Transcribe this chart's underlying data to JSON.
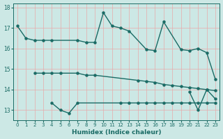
{
  "xlabel": "Humidex (Indice chaleur)",
  "xlim": [
    -0.5,
    23.5
  ],
  "ylim": [
    12.5,
    18.2
  ],
  "yticks": [
    13,
    14,
    15,
    16,
    17,
    18
  ],
  "xticks": [
    0,
    1,
    2,
    3,
    4,
    5,
    6,
    7,
    8,
    9,
    10,
    11,
    12,
    13,
    14,
    15,
    16,
    17,
    18,
    19,
    20,
    21,
    22,
    23
  ],
  "background_color": "#cce8e5",
  "grid_color": "#e8aaaa",
  "line_color": "#1a6b65",
  "marker_size": 2.2,
  "line_width": 1.0,
  "series": [
    {
      "x": [
        0,
        1,
        2,
        3,
        4,
        7,
        8,
        9,
        10,
        11,
        12,
        13,
        15,
        16,
        17,
        19,
        20,
        21,
        22,
        23
      ],
      "y": [
        17.1,
        16.5,
        16.4,
        16.4,
        16.4,
        16.4,
        16.3,
        16.3,
        17.75,
        17.1,
        17.0,
        16.85,
        15.95,
        15.9,
        17.3,
        15.95,
        15.9,
        16.0,
        15.8,
        14.5
      ]
    },
    {
      "x": [
        2,
        3,
        4,
        5,
        7,
        8,
        9,
        14,
        15,
        16,
        17,
        18,
        19,
        20,
        21,
        22,
        23
      ],
      "y": [
        14.8,
        14.8,
        14.8,
        14.8,
        14.8,
        14.7,
        14.7,
        14.45,
        14.4,
        14.35,
        14.25,
        14.2,
        14.15,
        14.1,
        14.05,
        14.0,
        13.95
      ]
    },
    {
      "x": [
        4,
        5,
        6,
        7,
        12,
        13,
        14,
        15,
        16,
        17,
        18,
        19,
        20,
        21,
        22,
        23
      ],
      "y": [
        13.35,
        13.0,
        12.85,
        13.35,
        13.35,
        13.35,
        13.35,
        13.35,
        13.35,
        13.35,
        13.35,
        13.35,
        13.35,
        13.35,
        13.35,
        13.35
      ]
    },
    {
      "x": [
        20,
        21,
        22,
        23
      ],
      "y": [
        13.88,
        13.0,
        14.0,
        13.55
      ]
    }
  ]
}
